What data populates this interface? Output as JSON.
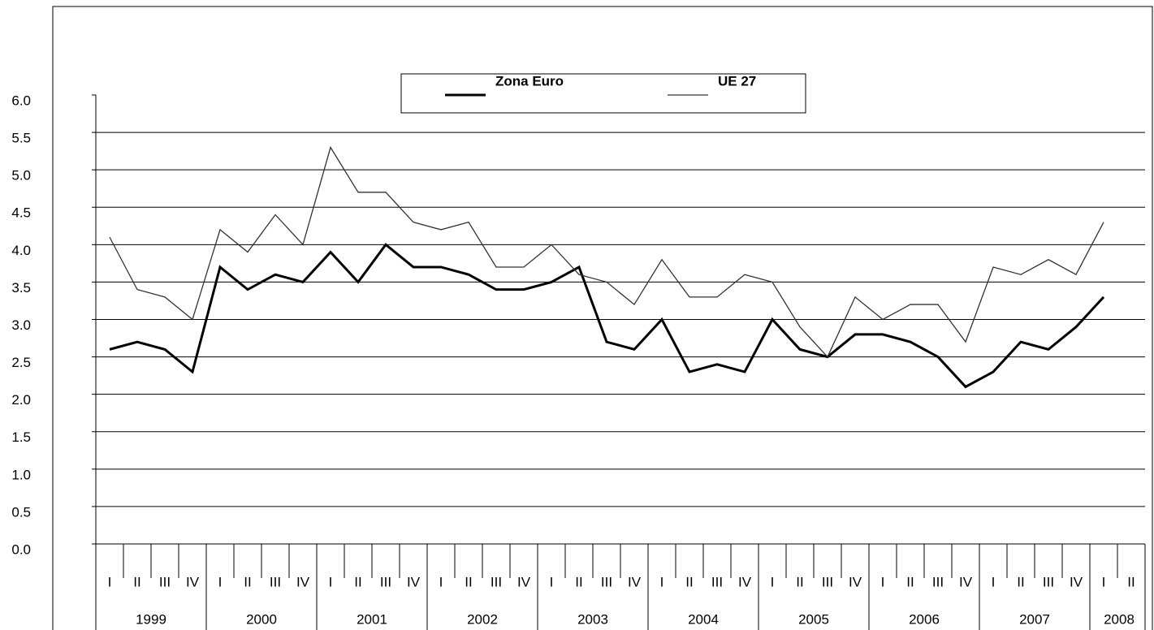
{
  "chart_data": {
    "type": "line",
    "categories": [
      "I",
      "II",
      "III",
      "IV",
      "I",
      "II",
      "III",
      "IV",
      "I",
      "II",
      "III",
      "IV",
      "I",
      "II",
      "III",
      "IV",
      "I",
      "II",
      "III",
      "IV",
      "I",
      "II",
      "III",
      "IV",
      "I",
      "II",
      "III",
      "IV",
      "I",
      "II",
      "III",
      "IV",
      "I",
      "II",
      "III",
      "IV",
      "I",
      "II"
    ],
    "years": [
      "1999",
      "2000",
      "2001",
      "2002",
      "2003",
      "2004",
      "2005",
      "2006",
      "2007",
      "2008"
    ],
    "series": [
      {
        "name": "Zona Euro",
        "color": "#000000",
        "width": 3,
        "values": [
          2.6,
          2.7,
          2.6,
          2.3,
          3.7,
          3.4,
          3.6,
          3.5,
          3.9,
          3.5,
          4.0,
          3.7,
          3.7,
          3.6,
          3.4,
          3.4,
          3.5,
          3.7,
          2.7,
          2.6,
          3.0,
          2.3,
          2.4,
          2.3,
          3.0,
          2.6,
          2.5,
          2.8,
          2.8,
          2.7,
          2.5,
          2.1,
          2.3,
          2.7,
          2.6,
          2.9,
          3.3,
          null
        ]
      },
      {
        "name": "UE 27",
        "color": "#333333",
        "width": 1.3,
        "values": [
          4.1,
          3.4,
          3.3,
          3.0,
          4.2,
          3.9,
          4.4,
          4.0,
          5.3,
          4.7,
          4.7,
          4.3,
          4.2,
          4.3,
          3.7,
          3.7,
          4.0,
          3.6,
          3.5,
          3.2,
          3.8,
          3.3,
          3.3,
          3.6,
          3.5,
          2.9,
          2.5,
          3.3,
          3.0,
          3.2,
          3.2,
          2.7,
          3.7,
          3.6,
          3.8,
          3.6,
          4.3,
          null
        ]
      }
    ],
    "ylim": [
      0,
      6
    ],
    "yticks": [
      {
        "value": 0,
        "label": "0.0"
      },
      {
        "value": 0.5,
        "label": "0.5"
      },
      {
        "value": 1,
        "label": "1.0"
      },
      {
        "value": 1.5,
        "label": "1.5"
      },
      {
        "value": 2,
        "label": "2.0"
      },
      {
        "value": 2.5,
        "label": "2.5"
      },
      {
        "value": 3,
        "label": "3.0"
      },
      {
        "value": 3.5,
        "label": "3.5"
      },
      {
        "value": 4,
        "label": "4.0"
      },
      {
        "value": 4.5,
        "label": "4.5"
      },
      {
        "value": 5,
        "label": "5.0"
      },
      {
        "value": 5.5,
        "label": "5.5"
      },
      {
        "value": 6,
        "label": "6.0"
      }
    ],
    "grid": true
  }
}
